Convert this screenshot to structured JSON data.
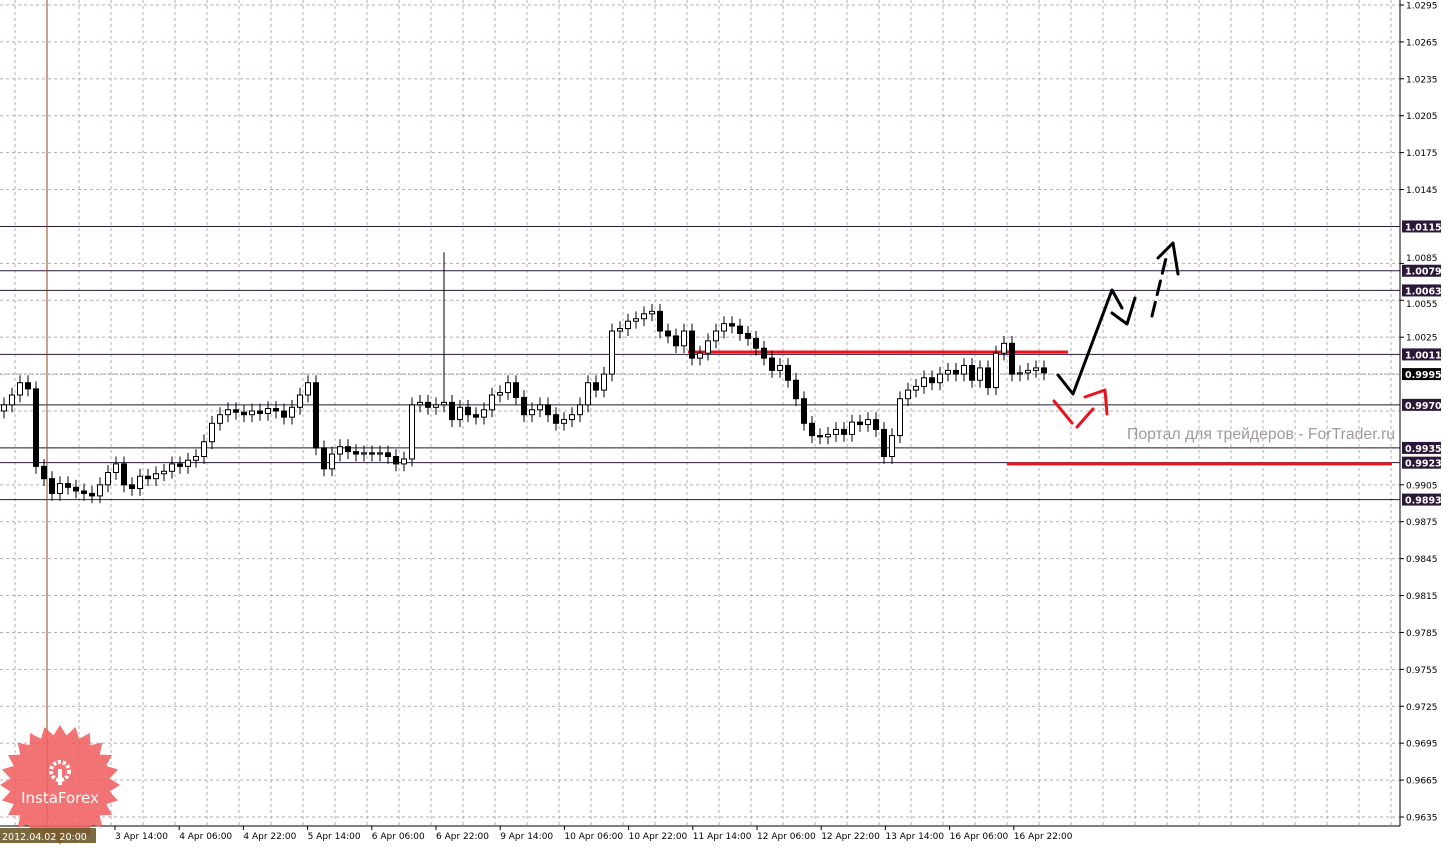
{
  "chart_data": {
    "type": "candlestick",
    "title": "",
    "timeframe_note": "",
    "y_axis": {
      "ylim": [
        0.9635,
        1.0295
      ],
      "ticks": [
        "1.0295",
        "1.0265",
        "1.0235",
        "1.0205",
        "1.0175",
        "1.0145",
        "1.0085",
        "1.0055",
        "1.0025",
        "0.9905",
        "0.9875",
        "0.9845",
        "0.9815",
        "0.9785",
        "0.9755",
        "0.9725",
        "0.9695",
        "0.9665",
        "0.9635"
      ]
    },
    "x_axis": {
      "highlight_label": "2012.04.02 20:00",
      "ticks": [
        "3 Apr 14:00",
        "4 Apr 06:00",
        "4 Apr 22:00",
        "5 Apr 14:00",
        "6 Apr 06:00",
        "6 Apr 22:00",
        "9 Apr 14:00",
        "10 Apr 06:00",
        "10 Apr 22:00",
        "11 Apr 14:00",
        "12 Apr 06:00",
        "12 Apr 22:00",
        "13 Apr 14:00",
        "16 Apr 06:00",
        "16 Apr 22:00"
      ]
    },
    "grid": true,
    "first_open": 0.9965,
    "closes": [
      0.997,
      0.9978,
      0.9988,
      0.9983,
      0.992,
      0.991,
      0.9898,
      0.9906,
      0.9903,
      0.99,
      0.9898,
      0.9896,
      0.9905,
      0.9915,
      0.9922,
      0.9905,
      0.9902,
      0.9912,
      0.991,
      0.9914,
      0.9916,
      0.9922,
      0.992,
      0.9925,
      0.9928,
      0.994,
      0.9955,
      0.9962,
      0.9966,
      0.9964,
      0.9962,
      0.9965,
      0.9963,
      0.9967,
      0.9965,
      0.996,
      0.9968,
      0.9978,
      0.9988,
      0.9935,
      0.9918,
      0.993,
      0.9936,
      0.9932,
      0.993,
      0.9931,
      0.993,
      0.9931,
      0.9928,
      0.9922,
      0.9926,
      0.997,
      0.9972,
      0.9968,
      0.997,
      0.9972,
      0.9958,
      0.9968,
      0.9962,
      0.996,
      0.9966,
      0.9978,
      0.998,
      0.9988,
      0.9976,
      0.9962,
      0.9966,
      0.997,
      0.9962,
      0.9955,
      0.9958,
      0.9962,
      0.997,
      0.9988,
      0.9982,
      0.9995,
      1.003,
      1.0032,
      1.0038,
      1.004,
      1.0044,
      1.0046,
      1.003,
      1.0026,
      1.0018,
      1.003,
      1.0008,
      1.0012,
      1.0022,
      1.003,
      1.0036,
      1.0034,
      1.0028,
      1.0024,
      1.0016,
      1.0008,
      0.9998,
      1.0002,
      0.999,
      0.9975,
      0.9955,
      0.9945,
      0.9944,
      0.9946,
      0.995,
      0.9946,
      0.9956,
      0.9954,
      0.9958,
      0.995,
      0.9928,
      0.9945,
      0.9975,
      0.9982,
      0.9985,
      0.9992,
      0.9988,
      0.9995,
      0.9998,
      0.9995,
      1.0002,
      0.999,
      1.0,
      0.9984,
      1.0012,
      1.002,
      0.9995,
      0.9996,
      0.9998,
      1.0,
      0.9996
    ],
    "spike": {
      "index": 55,
      "high": 1.0094
    },
    "levels": [
      {
        "price": 1.0115,
        "label": "1.0115"
      },
      {
        "price": 1.0079,
        "label": "1.0079"
      },
      {
        "price": 1.0063,
        "label": "1.0063"
      },
      {
        "price": 1.0011,
        "label": "1.0011"
      },
      {
        "price": 0.997,
        "label": "0.9970"
      },
      {
        "price": 0.9935,
        "label": "0.9935"
      },
      {
        "price": 0.9923,
        "label": "0.9923"
      },
      {
        "price": 0.9893,
        "label": "0.9893"
      }
    ],
    "current_price": {
      "price": 0.9995,
      "label": "0.9995"
    },
    "red_levels": [
      1.0013,
      0.9922
    ],
    "colors": {
      "level": "#2b1838",
      "label_bg": "#2b1838",
      "current_bg": "#000000",
      "red": "#e8141c",
      "grid": "#b8a8b8",
      "vline": "#8b4a1c",
      "watermark": "#a09a9a",
      "logo": "#f06060"
    }
  },
  "watermark": "Портал для трейдеров - ForTrader.ru",
  "logo": {
    "text": "InstaForex"
  }
}
